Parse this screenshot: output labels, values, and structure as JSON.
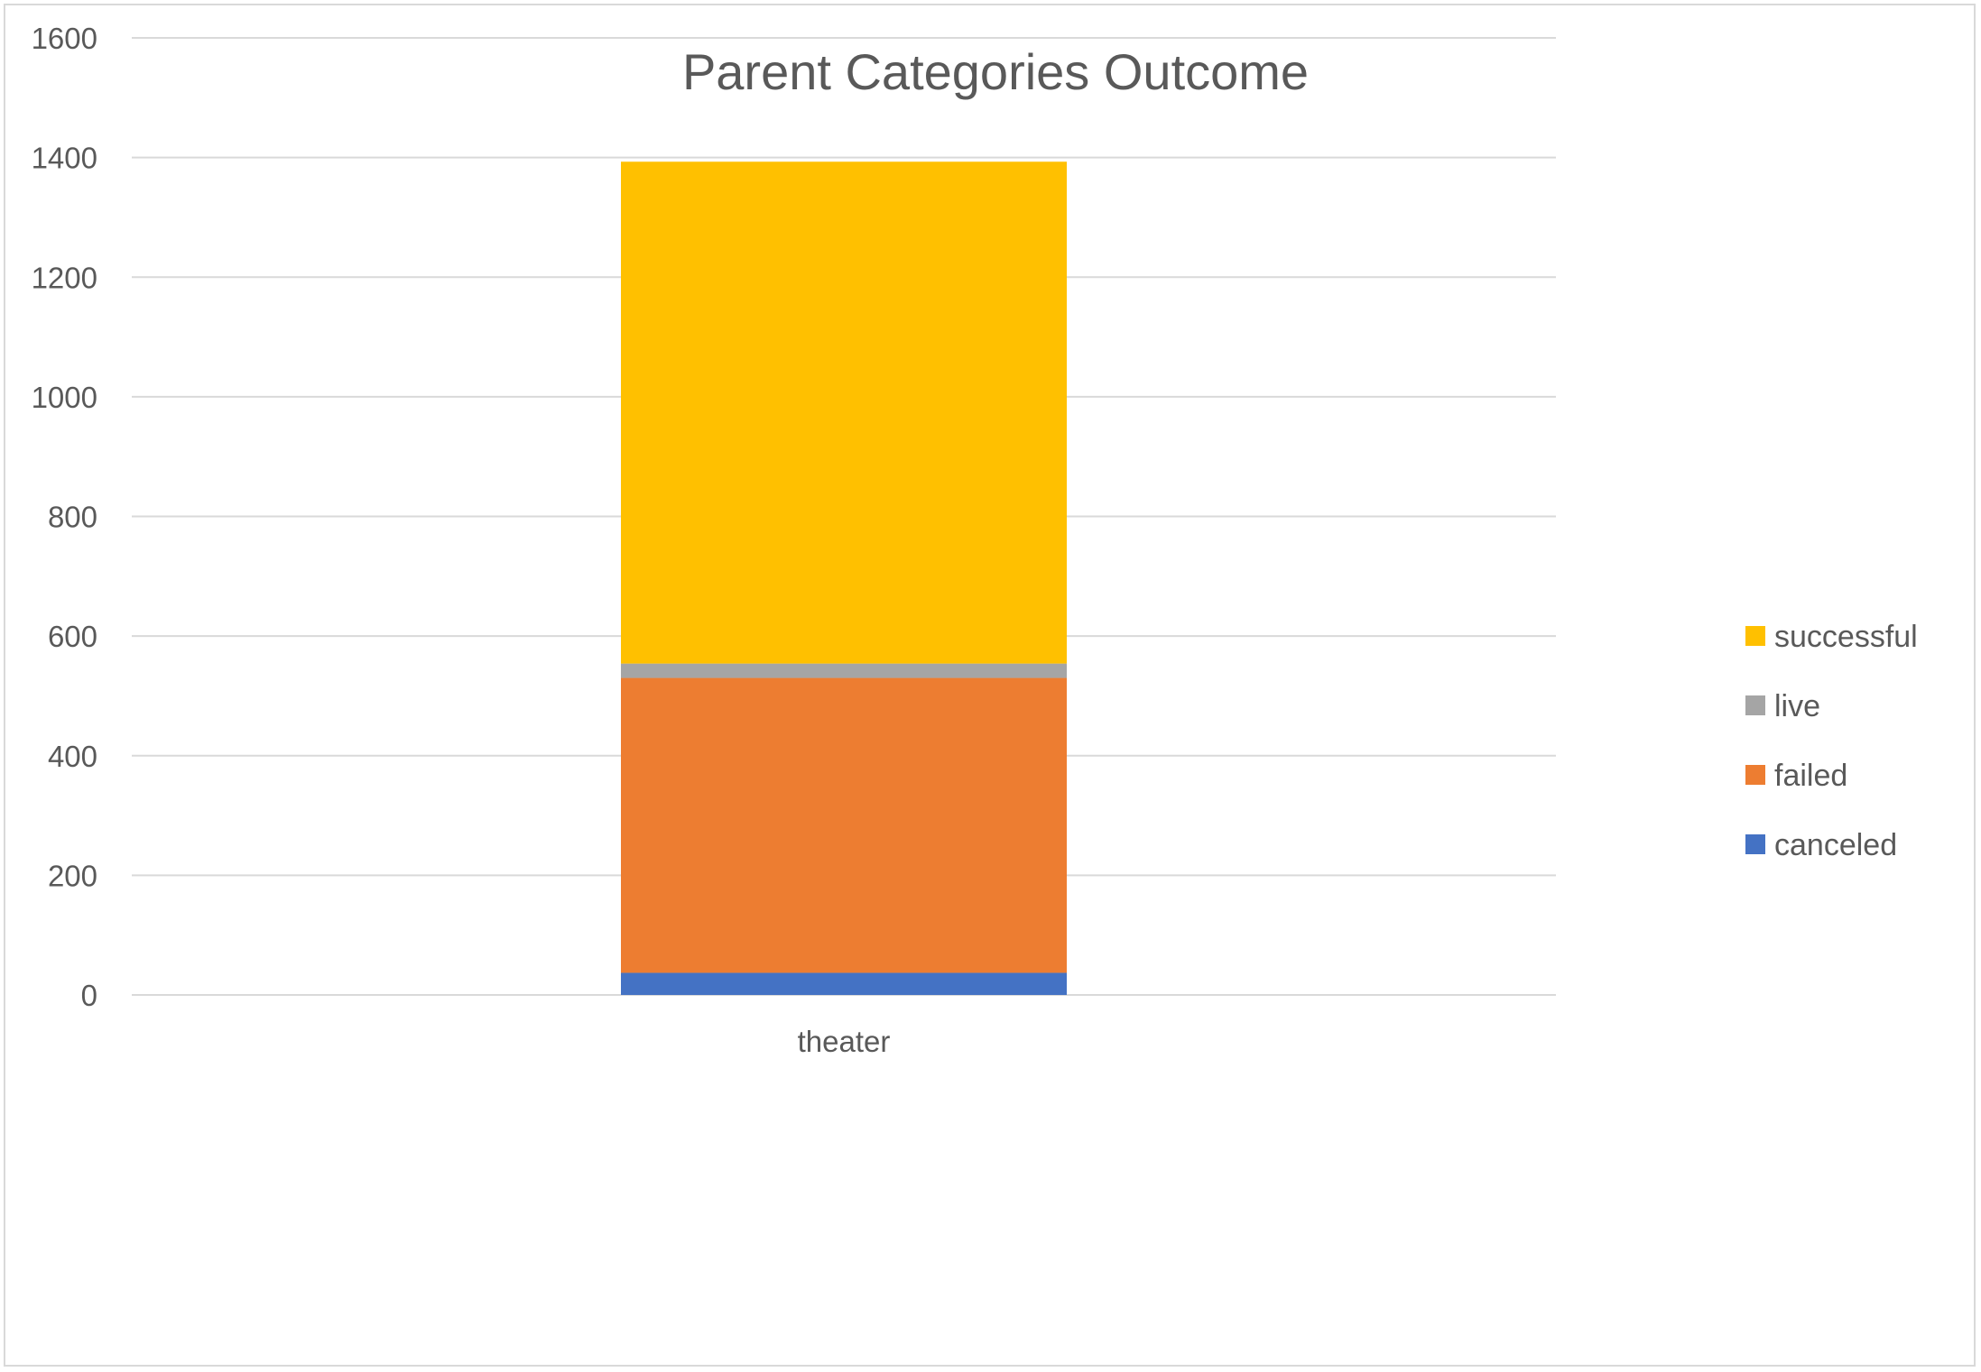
{
  "chart_data": {
    "type": "bar",
    "stacked": true,
    "title": "Parent Categories Outcome",
    "xlabel": "",
    "ylabel": "",
    "categories": [
      "theater"
    ],
    "series": [
      {
        "name": "canceled",
        "values": [
          37
        ],
        "color": "#4472C4"
      },
      {
        "name": "failed",
        "values": [
          493
        ],
        "color": "#ED7D31"
      },
      {
        "name": "live",
        "values": [
          24
        ],
        "color": "#A5A5A5"
      },
      {
        "name": "successful",
        "values": [
          839
        ],
        "color": "#FFC000"
      }
    ],
    "ylim": [
      0,
      1600
    ],
    "yticks": [
      "0",
      "200",
      "400",
      "600",
      "800",
      "1000",
      "1200",
      "1400",
      "1600"
    ],
    "grid": true,
    "legend": {
      "placement": "right",
      "order": [
        "successful",
        "live",
        "failed",
        "canceled"
      ]
    }
  }
}
